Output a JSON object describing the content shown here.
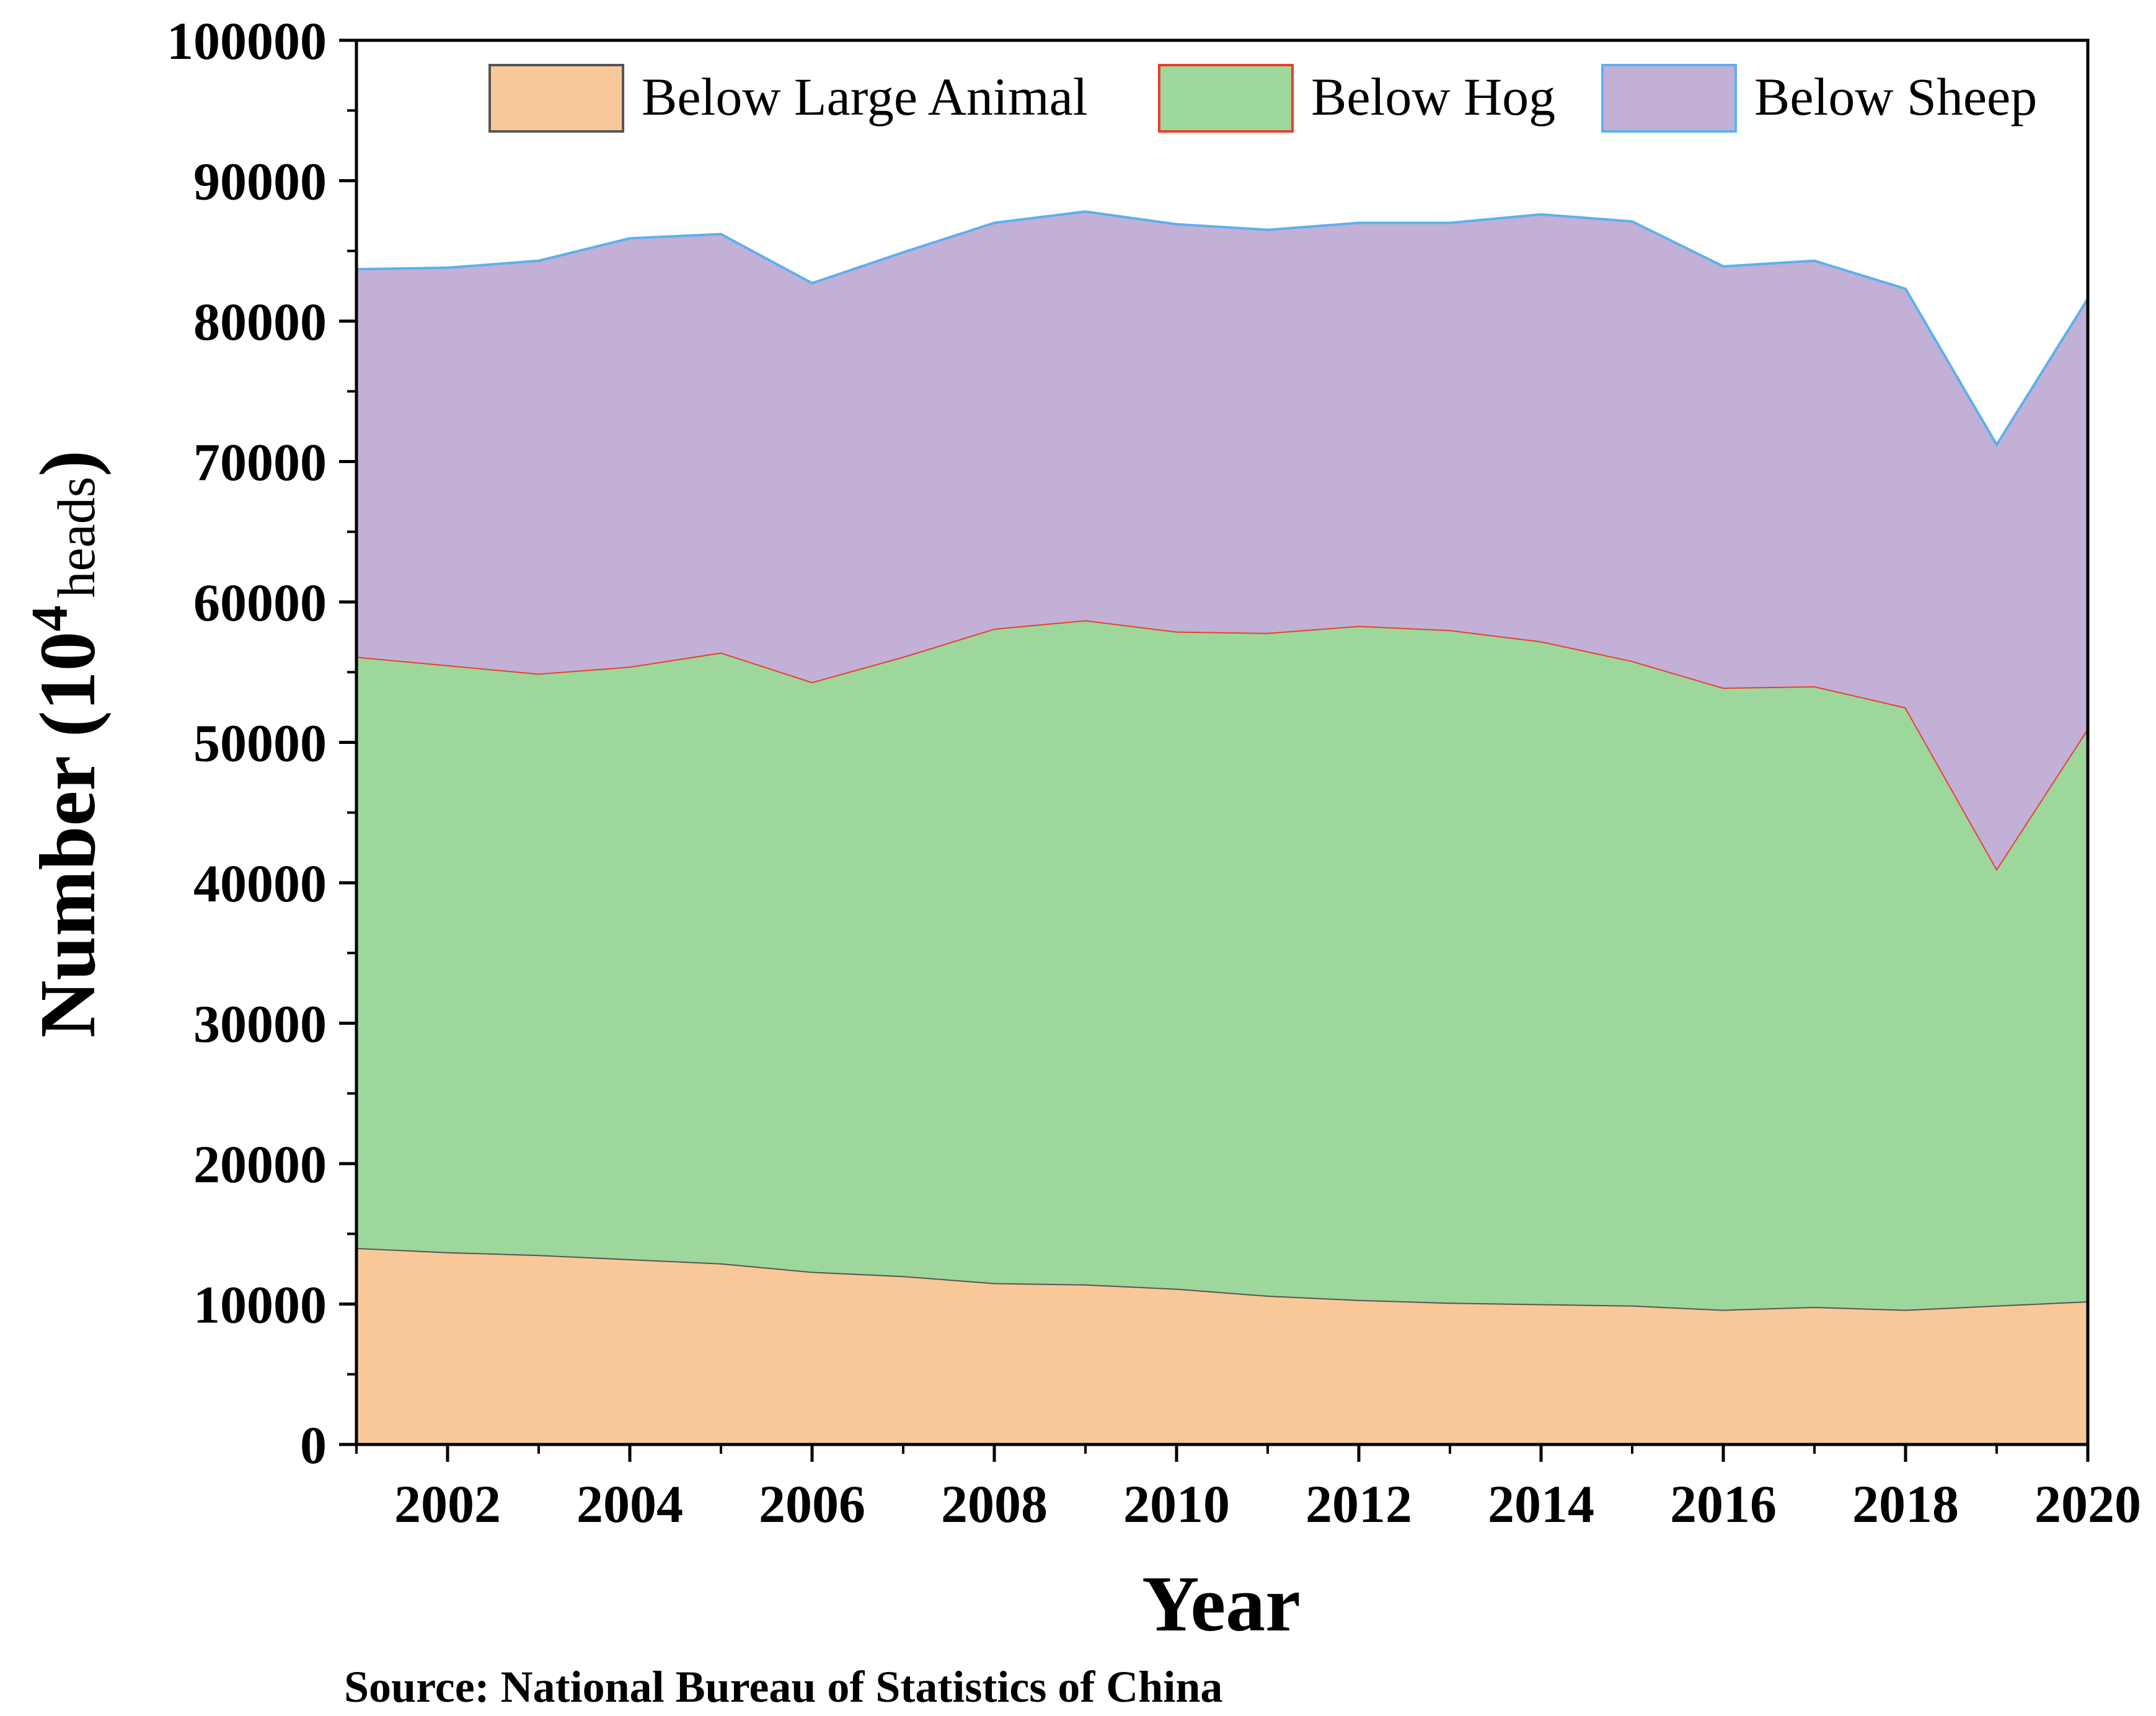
{
  "chart_data": {
    "type": "area",
    "stacked": true,
    "title": "",
    "xlabel": "Year",
    "ylabel": {
      "prefix": "Number (",
      "base": "10",
      "exponent": "4",
      "unit": "heads",
      "suffix": ")"
    },
    "source": "Source: National Bureau of Statistics of China",
    "x": [
      2001,
      2002,
      2003,
      2004,
      2005,
      2006,
      2007,
      2008,
      2009,
      2010,
      2011,
      2012,
      2013,
      2014,
      2015,
      2016,
      2017,
      2018,
      2019,
      2020
    ],
    "xlim": [
      2001,
      2020
    ],
    "ylim": [
      0,
      100000
    ],
    "x_ticks": [
      "2002",
      "2004",
      "2006",
      "2008",
      "2010",
      "2012",
      "2014",
      "2016",
      "2018",
      "2020"
    ],
    "y_ticks": [
      "0",
      "10000",
      "20000",
      "30000",
      "40000",
      "50000",
      "60000",
      "70000",
      "80000",
      "90000",
      "100000"
    ],
    "grid": false,
    "legend_position": "top-right",
    "series": [
      {
        "name": "Below Large Animal",
        "fill": "#f9c899",
        "stroke": "#555555",
        "values": [
          14000,
          13700,
          13500,
          13200,
          12900,
          12300,
          12000,
          11500,
          11400,
          11100,
          10600,
          10300,
          10100,
          10000,
          9900,
          9600,
          9800,
          9600,
          9900,
          10200
        ]
      },
      {
        "name": "Below Hog",
        "fill": "#9dd79b",
        "stroke": "#e8402d",
        "values": [
          42100,
          41800,
          41400,
          42200,
          43500,
          42000,
          44100,
          46600,
          47300,
          46800,
          47200,
          48000,
          47900,
          47200,
          45900,
          44300,
          44200,
          42900,
          31100,
          40800
        ]
      },
      {
        "name": "Below Sheep",
        "fill": "#c2b0d6",
        "stroke": "#5cb0ee",
        "values": [
          27600,
          28300,
          29400,
          30500,
          29800,
          28400,
          28800,
          28900,
          29100,
          29000,
          28700,
          28700,
          29000,
          30400,
          31300,
          30000,
          30300,
          29800,
          30200,
          30600
        ]
      }
    ]
  }
}
